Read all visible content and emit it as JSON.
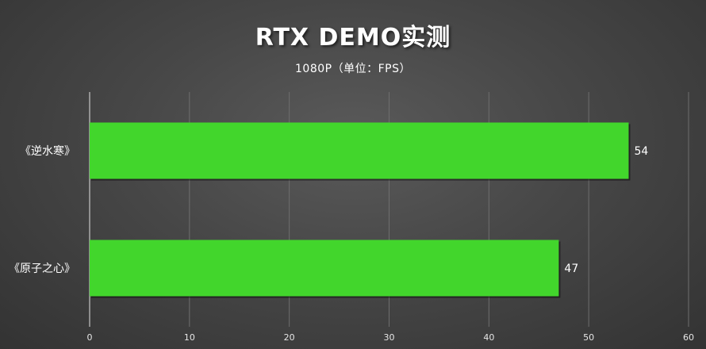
{
  "chart_data": {
    "type": "bar",
    "orientation": "horizontal",
    "title": "RTX DEMO实测",
    "subtitle": "1080P（单位：FPS）",
    "categories": [
      "《逆水寒》",
      "《原子之心》"
    ],
    "values": [
      54,
      47
    ],
    "xlim": [
      0,
      60
    ],
    "xticks": [
      0,
      10,
      20,
      30,
      40,
      50,
      60
    ],
    "grid": true,
    "bar_color": "#42d62c"
  }
}
